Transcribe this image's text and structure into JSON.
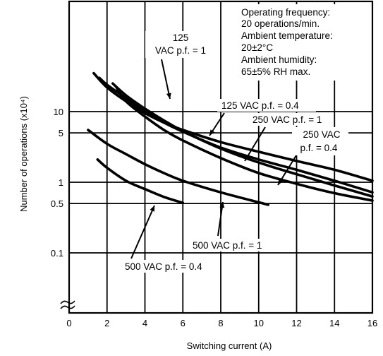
{
  "chart_data": {
    "type": "line",
    "title": "",
    "xlabel": "Switching current (A)",
    "ylabel": "Number of operations (x10⁴)",
    "xlim": [
      0,
      16
    ],
    "ylim_log": [
      0.1,
      40
    ],
    "y_scale": "log",
    "grid": true,
    "x_ticks": [
      "0",
      "2",
      "4",
      "6",
      "8",
      "10",
      "12",
      "14",
      "16"
    ],
    "y_ticks": [
      {
        "label": "10",
        "value": 10
      },
      {
        "label": "5",
        "value": 5
      },
      {
        "label": "1",
        "value": 1
      },
      {
        "label": "0.5",
        "value": 0.5
      },
      {
        "label": "0.1",
        "value": 0.1
      }
    ],
    "series": [
      {
        "id": "s125_1",
        "color": "#000000",
        "points": [
          [
            1.3,
            35
          ],
          [
            2,
            22
          ],
          [
            3,
            14
          ],
          [
            4,
            9.5
          ],
          [
            5,
            7
          ],
          [
            6,
            5.5
          ],
          [
            8,
            3.7
          ],
          [
            10,
            2.7
          ],
          [
            12,
            2
          ],
          [
            14,
            1.5
          ],
          [
            16,
            1.05
          ]
        ]
      },
      {
        "id": "s125_04",
        "color": "#000000",
        "points": [
          [
            1.6,
            30
          ],
          [
            2,
            24
          ],
          [
            3,
            15.5
          ],
          [
            4,
            10
          ],
          [
            5,
            7
          ],
          [
            6,
            5.2
          ],
          [
            8,
            3.1
          ],
          [
            10,
            2.1
          ],
          [
            12,
            1.5
          ],
          [
            14,
            1.05
          ],
          [
            16,
            0.72
          ]
        ]
      },
      {
        "id": "s250_1",
        "color": "#000000",
        "points": [
          [
            2.3,
            25
          ],
          [
            3,
            17
          ],
          [
            4,
            11
          ],
          [
            5,
            7.5
          ],
          [
            6,
            5.3
          ],
          [
            8,
            3
          ],
          [
            10,
            1.9
          ],
          [
            12,
            1.3
          ],
          [
            14,
            0.9
          ],
          [
            16,
            0.63
          ]
        ]
      },
      {
        "id": "s250_04",
        "color": "#000000",
        "points": [
          [
            2.5,
            22
          ],
          [
            3,
            14
          ],
          [
            4,
            8.5
          ],
          [
            5,
            5.5
          ],
          [
            6,
            3.9
          ],
          [
            8,
            2.2
          ],
          [
            10,
            1.35
          ],
          [
            12,
            0.95
          ],
          [
            14,
            0.7
          ],
          [
            16,
            0.55
          ]
        ]
      },
      {
        "id": "s500_1",
        "color": "#000000",
        "points": [
          [
            1,
            5.5
          ],
          [
            2,
            3.5
          ],
          [
            3,
            2.5
          ],
          [
            4,
            1.8
          ],
          [
            5,
            1.35
          ],
          [
            6,
            1.05
          ],
          [
            8,
            0.72
          ],
          [
            10,
            0.52
          ],
          [
            10.5,
            0.48
          ]
        ]
      },
      {
        "id": "s500_04",
        "color": "#000000",
        "points": [
          [
            1.5,
            2.1
          ],
          [
            2,
            1.6
          ],
          [
            3,
            1.05
          ],
          [
            4,
            0.8
          ],
          [
            5,
            0.62
          ],
          [
            6,
            0.51
          ]
        ]
      }
    ],
    "annotations": [
      {
        "lines": [
          "Operating frequency:",
          "20 operations/min.",
          "Ambient temperature:",
          "20±2°C",
          "Ambient humidity:",
          "65±5% RH max."
        ]
      },
      {
        "lines": [
          "125",
          "VAC p.f. = 1"
        ]
      },
      {
        "lines": [
          "125 VAC p.f. = 0.4"
        ]
      },
      {
        "lines": [
          "250 VAC p.f. = 1"
        ]
      },
      {
        "lines": [
          "250 VAC",
          "p.f. = 0.4"
        ]
      },
      {
        "lines": [
          "500 VAC p.f. = 1"
        ]
      },
      {
        "lines": [
          "500 VAC p.f. = 0.4"
        ]
      }
    ]
  }
}
